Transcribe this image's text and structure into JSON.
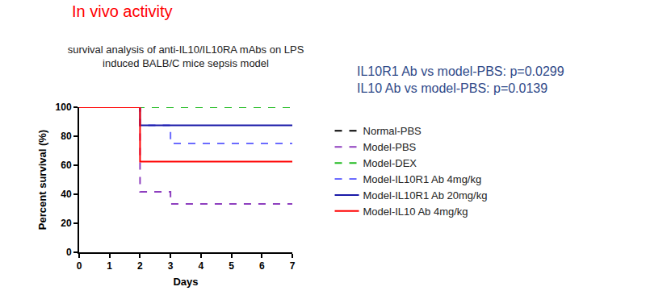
{
  "chart_data": {
    "type": "line",
    "heading": "In vivo activity",
    "title": "survival analysis of anti-IL10/IL10RA mAbs on LPS induced BALB/C mice sepsis model",
    "annotations": [
      "IL10R1 Ab vs model-PBS: p=0.0299",
      "IL10 Ab vs model-PBS: p=0.0139"
    ],
    "x_label": "Days",
    "y_label": "Percent survival (%)",
    "x": [
      0,
      1,
      2,
      3,
      4,
      5,
      6,
      7
    ],
    "series": [
      {
        "name": "Normal-PBS",
        "color": "#000000",
        "line_style": "dashed",
        "values": [
          100,
          100,
          100,
          100,
          100,
          100,
          100,
          100
        ]
      },
      {
        "name": "Model-PBS",
        "color": "#8e3fbf",
        "line_style": "dashed",
        "values": [
          100,
          100,
          41.7,
          33.3,
          33.3,
          33.3,
          33.3,
          33.3
        ]
      },
      {
        "name": "Model-DEX",
        "color": "#22bb22",
        "line_style": "dashed",
        "values": [
          100,
          100,
          100,
          100,
          100,
          100,
          100,
          100
        ]
      },
      {
        "name": "Model-IL10R1 Ab 4mg/kg",
        "color": "#6b6bff",
        "line_style": "dashed",
        "values": [
          100,
          100,
          87.5,
          75,
          75,
          75,
          75,
          75
        ]
      },
      {
        "name": "Model-IL10R1 Ab 20mg/kg",
        "color": "#1a1aa8",
        "line_style": "solid",
        "values": [
          100,
          100,
          87.5,
          87.5,
          87.5,
          87.5,
          87.5,
          87.5
        ]
      },
      {
        "name": "Model-IL10 Ab 4mg/kg",
        "color": "#ff0000",
        "line_style": "solid",
        "values": [
          100,
          100,
          62.5,
          62.5,
          62.5,
          62.5,
          62.5,
          62.5
        ]
      }
    ],
    "xlim": [
      0,
      7
    ],
    "xticks": [
      0,
      1,
      2,
      3,
      4,
      5,
      6,
      7
    ],
    "ylim": [
      0,
      100
    ],
    "yticks": [
      0,
      20,
      40,
      60,
      80,
      100
    ],
    "grid": false,
    "legend": "right"
  }
}
